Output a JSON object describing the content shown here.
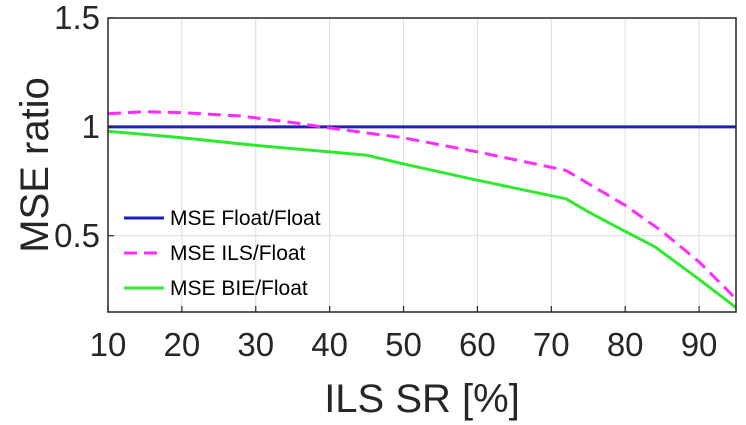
{
  "chart_data": {
    "type": "line",
    "title": "",
    "xlabel": "ILS SR [%]",
    "ylabel": "MSE ratio",
    "xlim": [
      10,
      95
    ],
    "ylim": [
      0.15,
      1.5
    ],
    "x_ticks": [
      10,
      20,
      30,
      40,
      50,
      60,
      70,
      80,
      90
    ],
    "x_tick_labels": [
      "10",
      "20",
      "30",
      "40",
      "50",
      "60",
      "70",
      "80",
      "90"
    ],
    "y_ticks": [
      0.5,
      1,
      1.5
    ],
    "y_tick_labels": [
      "0.5",
      "1",
      "1.5"
    ],
    "grid": true,
    "legend_position": "bottom-left",
    "series": [
      {
        "name": "MSE Float/Float",
        "color": "#1f1fbf",
        "style": "solid",
        "x": [
          10,
          95
        ],
        "y": [
          1.0,
          1.0
        ]
      },
      {
        "name": "MSE ILS/Float",
        "color": "#ff2bff",
        "style": "dashed",
        "x": [
          10,
          15,
          20,
          28,
          35,
          40,
          50,
          60,
          65,
          72,
          75,
          80,
          85,
          90,
          95
        ],
        "y": [
          1.06,
          1.07,
          1.065,
          1.05,
          1.02,
          0.995,
          0.95,
          0.885,
          0.85,
          0.8,
          0.74,
          0.64,
          0.52,
          0.38,
          0.21
        ]
      },
      {
        "name": "MSE BIE/Float",
        "color": "#2eea2e",
        "style": "solid",
        "x": [
          10,
          20,
          30,
          40,
          45,
          50,
          60,
          72,
          75,
          80,
          84,
          90,
          95
        ],
        "y": [
          0.98,
          0.95,
          0.915,
          0.885,
          0.87,
          0.83,
          0.755,
          0.67,
          0.61,
          0.52,
          0.45,
          0.3,
          0.17
        ]
      }
    ]
  }
}
